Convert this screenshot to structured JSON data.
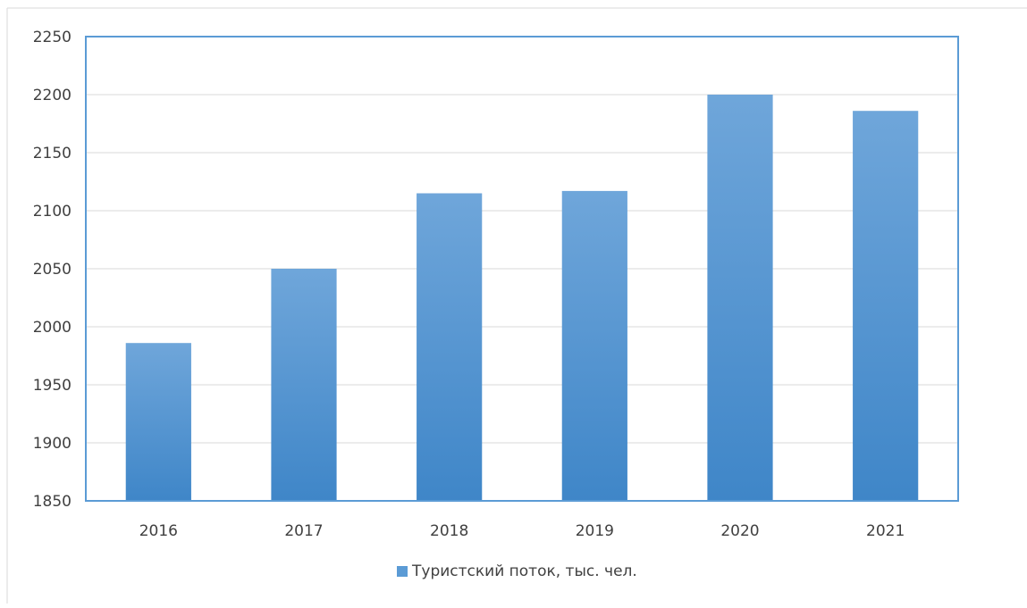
{
  "chart_data": {
    "type": "bar",
    "categories": [
      "2016",
      "2017",
      "2018",
      "2019",
      "2020",
      "2021"
    ],
    "series": [
      {
        "name": "Туристский поток, тыс. чел.",
        "values": [
          1986,
          2050,
          2115,
          2117,
          2200,
          2186
        ],
        "color": "#5b9bd5"
      }
    ],
    "y_ticks": [
      "1850",
      "1900",
      "1950",
      "2000",
      "2050",
      "2100",
      "2150",
      "2200",
      "2250"
    ],
    "ylim": [
      1850,
      2250
    ],
    "grid": true,
    "legend_position": "bottom",
    "colors": {
      "bar_top": "#6fa6da",
      "bar_bottom": "#3f86c8",
      "plot_border": "#5b9bd5",
      "gridline": "#d9d9d9",
      "frame": "#d9d9d9"
    }
  }
}
